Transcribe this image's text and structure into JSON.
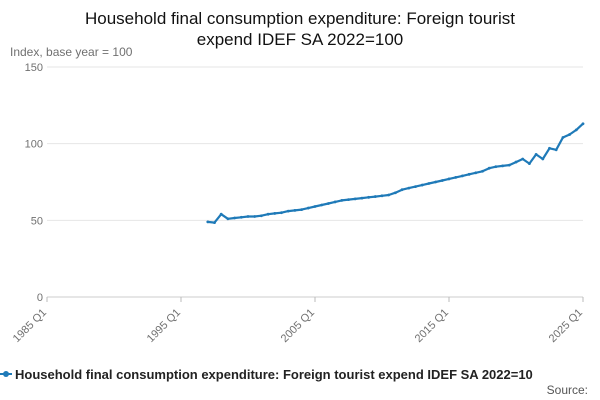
{
  "colors": {
    "series": "#1f7ab8",
    "grid": "#e6e6e6",
    "axis_text": "#707070"
  },
  "header": {
    "title_line1": "Household final consumption expenditure: Foreign tourist",
    "title_line2": "expend IDEF SA 2022=100"
  },
  "footer": {
    "source_label": "Source:"
  },
  "chart_data": {
    "type": "line",
    "title": "Household final consumption expenditure: Foreign tourist expend IDEF SA 2022=100",
    "ylabel": "Index, base year = 100",
    "xlabel": "",
    "ylim": [
      0,
      150
    ],
    "xlim": [
      "1985 Q1",
      "2025 Q1"
    ],
    "yticks": [
      "0",
      "50",
      "100",
      "150"
    ],
    "xticks": [
      "1985 Q1",
      "1995 Q1",
      "2005 Q1",
      "2015 Q1",
      "2025 Q1"
    ],
    "grid": true,
    "legend": "bottom",
    "series": [
      {
        "name": "Household final consumption expenditure: Foreign tourist expend IDEF SA 2022=10",
        "x": [
          "1997 Q1",
          "1997 Q3",
          "1998 Q1",
          "1998 Q3",
          "1999 Q1",
          "1999 Q3",
          "2000 Q1",
          "2000 Q3",
          "2001 Q1",
          "2001 Q3",
          "2002 Q1",
          "2002 Q3",
          "2003 Q1",
          "2003 Q3",
          "2004 Q1",
          "2004 Q3",
          "2005 Q1",
          "2005 Q3",
          "2006 Q1",
          "2006 Q3",
          "2007 Q1",
          "2007 Q3",
          "2008 Q1",
          "2008 Q3",
          "2009 Q1",
          "2009 Q3",
          "2010 Q1",
          "2010 Q3",
          "2011 Q1",
          "2011 Q3",
          "2012 Q1",
          "2012 Q3",
          "2013 Q1",
          "2013 Q3",
          "2014 Q1",
          "2014 Q3",
          "2015 Q1",
          "2015 Q3",
          "2016 Q1",
          "2016 Q3",
          "2017 Q1",
          "2017 Q3",
          "2018 Q1",
          "2018 Q3",
          "2019 Q1",
          "2019 Q3",
          "2020 Q1",
          "2020 Q3",
          "2021 Q1",
          "2021 Q3",
          "2022 Q1",
          "2022 Q3",
          "2023 Q1",
          "2023 Q3",
          "2024 Q1",
          "2024 Q3",
          "2025 Q1"
        ],
        "values": [
          49,
          48.5,
          54,
          51,
          51.5,
          52,
          52.5,
          52.5,
          53,
          54,
          54.5,
          55,
          56,
          56.5,
          57,
          58,
          59,
          60,
          61,
          62,
          63,
          63.5,
          64,
          64.5,
          65,
          65.5,
          66,
          66.5,
          68,
          70,
          71,
          72,
          73,
          74,
          75,
          76,
          77,
          78,
          79,
          80,
          81,
          82,
          84,
          85,
          85.5,
          86,
          88,
          90,
          87,
          93,
          90,
          97,
          96,
          104,
          106,
          109,
          113
        ]
      }
    ]
  }
}
